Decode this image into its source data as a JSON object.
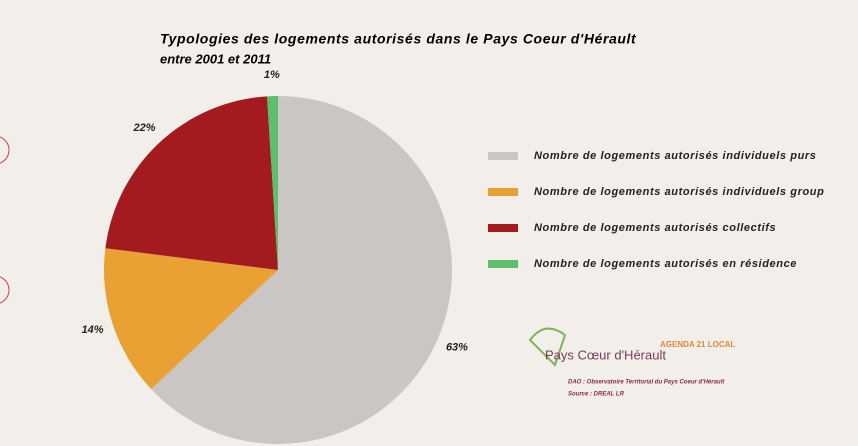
{
  "chart_data": {
    "type": "pie",
    "title": "Typologies des logements autorisés dans le Pays Coeur d'Hérault",
    "subtitle": "entre 2001 et 2011",
    "categories": [
      "Nombre de logements autorisés individuels purs",
      "Nombre de logements autorisés individuels group",
      "Nombre de logements autorisés collectifs",
      "Nombre de logements autorisés en résidence"
    ],
    "values": [
      63,
      14,
      22,
      1
    ],
    "value_labels": [
      "63%",
      "14%",
      "22%",
      "1%"
    ],
    "colors": [
      "#c9c6c4",
      "#e8a132",
      "#a31b1f",
      "#5cbf6a"
    ],
    "legend": "right"
  },
  "credits": {
    "logo": "Pays Cœur d'Hérault",
    "logo2": "AGENDA 21 LOCAL",
    "dao": "DAO : Observatoire Territorial du Pays Coeur d'Hérault",
    "source": "Source : DREAL LR"
  }
}
